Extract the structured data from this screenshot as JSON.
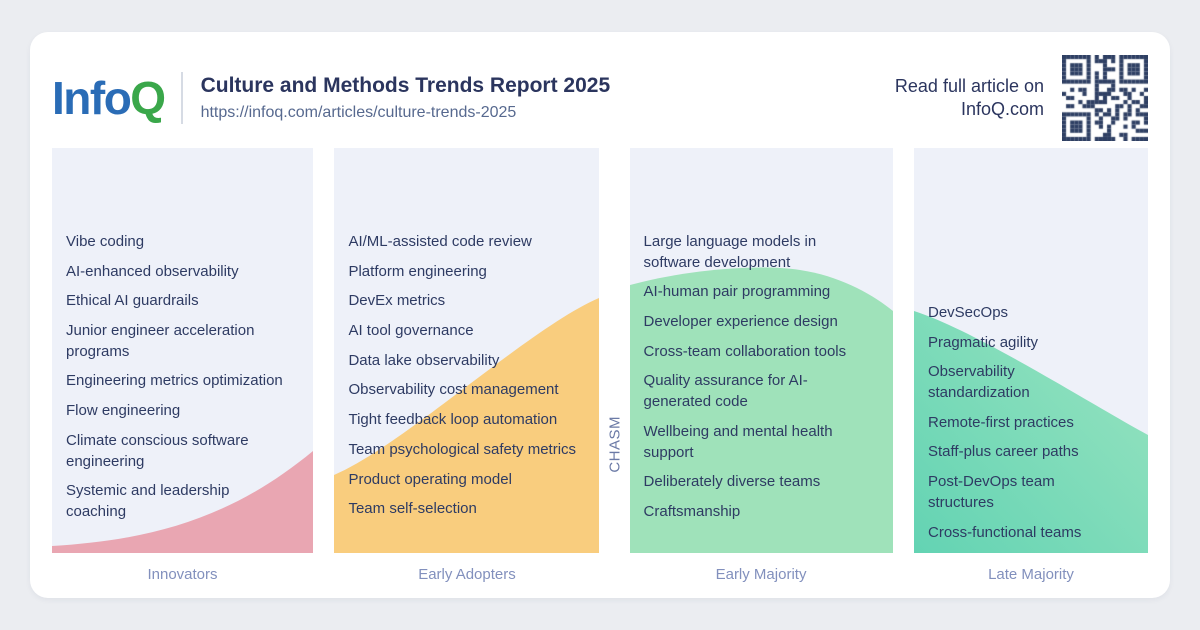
{
  "header": {
    "logo_info": "Info",
    "logo_q": "Q",
    "title": "Culture and Methods Trends Report 2025",
    "url": "https://infoq.com/articles/culture-trends-2025",
    "cta": "Read full article on InfoQ.com",
    "qr_icon": "qr-code",
    "qr_color": "#2e3f63"
  },
  "chasm": {
    "label": "CHASM"
  },
  "adoption": {
    "columns": [
      {
        "label": "Innovators",
        "fill": "#e9a6b2",
        "items": [
          "Vibe coding",
          "AI-enhanced observability",
          "Ethical AI guardrails",
          "Junior engineer acceleration programs",
          "Engineering metrics optimization",
          "Flow engineering",
          "Climate conscious software engineering",
          "Systemic and leadership coaching"
        ]
      },
      {
        "label": "Early Adopters",
        "fill": "#f9cd7e",
        "items": [
          "AI/ML-assisted code review",
          "Platform engineering",
          "DevEx metrics",
          "AI tool governance",
          "Data lake observability",
          "Observability cost management",
          "Tight feedback loop automation",
          "Team psychological safety metrics",
          "Product operating model",
          "Team self-selection"
        ]
      },
      {
        "label": "Early Majority",
        "fill": "#9fe2ba",
        "items": [
          "Large language models in software development",
          "AI-human pair programming",
          "Developer experience design",
          "Cross-team collaboration tools",
          "Quality assurance for AI-generated code",
          "Wellbeing and mental health support",
          "Deliberately diverse teams",
          "Craftsmanship"
        ]
      },
      {
        "label": "Late Majority",
        "fill": "#63d3b3",
        "fill2": "#9ae4c0",
        "items": [
          "DevSecOps",
          "Pragmatic agility",
          "Observability standardization",
          "Remote-first practices",
          "Staff-plus career paths",
          "Post-DevOps team structures",
          "Cross-functional teams"
        ]
      }
    ]
  }
}
